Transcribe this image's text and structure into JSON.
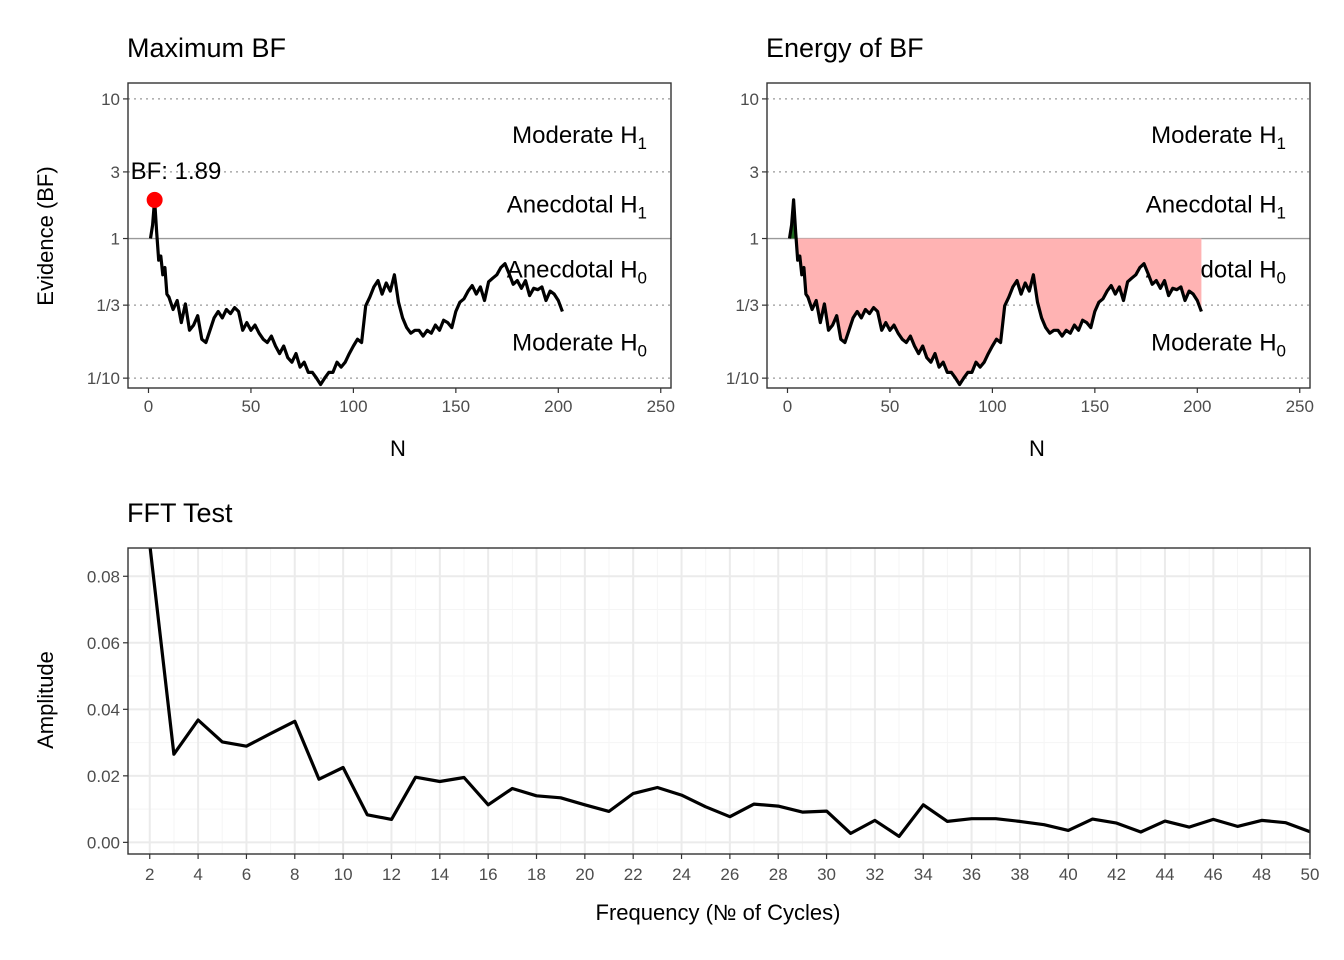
{
  "panels": {
    "max_bf": {
      "title": "Maximum BF",
      "annotation": "BF: 1.89"
    },
    "energy_bf": {
      "title": "Energy of BF"
    },
    "fft": {
      "title": "FFT Test"
    }
  },
  "bf_axis": {
    "ylabel": "Evidence (BF)",
    "xlabel": "N",
    "y_ticks": [
      {
        "value": 10,
        "label": "10"
      },
      {
        "value": 3,
        "label": "3"
      },
      {
        "value": 1,
        "label": "1"
      },
      {
        "value": 0.3333,
        "label": "1/3"
      },
      {
        "value": 0.1,
        "label": "1/10"
      }
    ],
    "x_ticks": [
      0,
      50,
      100,
      150,
      200,
      250
    ],
    "zones": [
      {
        "label": "Moderate H",
        "sub": "1",
        "level": 5.5
      },
      {
        "label": "Anecdotal H",
        "sub": "1",
        "level": 1.75
      },
      {
        "label": "Anecdotal H",
        "sub": "0",
        "level": 0.6
      },
      {
        "label": "Moderate H",
        "sub": "0",
        "level": 0.18
      }
    ]
  },
  "fft_axis": {
    "ylabel": "Amplitude",
    "xlabel": "Frequency (№ of Cycles)",
    "y_ticks": [
      "0.00",
      "0.02",
      "0.04",
      "0.06",
      "0.08"
    ],
    "x_ticks": [
      2,
      4,
      6,
      8,
      10,
      12,
      14,
      16,
      18,
      20,
      22,
      24,
      26,
      28,
      30,
      32,
      34,
      36,
      38,
      40,
      42,
      44,
      46,
      48,
      50
    ]
  },
  "colors": {
    "line": "#000000",
    "max_point": "#ff0000",
    "energy_fill_h0": "#ffb3b3",
    "energy_fill_h1": "#1f6b1f",
    "reference_line": "#999999",
    "dotted_guides": "#999999",
    "panel_border": "#333333",
    "grid_major": "#ebebeb",
    "grid_minor": "#f5f5f5"
  },
  "chart_data": [
    {
      "type": "line",
      "title": "Maximum BF",
      "xlabel": "N",
      "ylabel": "Evidence (BF)",
      "y_scale": "log",
      "xlim": [
        -10,
        255
      ],
      "ylim": [
        0.085,
        13
      ],
      "max_point": {
        "x": 3,
        "y": 1.89,
        "label": "BF: 1.89"
      },
      "reference_line_y": 1,
      "dotted_lines_y": [
        10,
        3,
        0.3333,
        0.1
      ],
      "series": [
        {
          "x": [
            1,
            2,
            3,
            4,
            5,
            6,
            7,
            8,
            9,
            10,
            12,
            14,
            16,
            18,
            20,
            22,
            24,
            26,
            28,
            30,
            32,
            34,
            36,
            38,
            40,
            42,
            44,
            46,
            48,
            50,
            52,
            54,
            56,
            58,
            60,
            62,
            64,
            66,
            68,
            70,
            72,
            74,
            76,
            78,
            80,
            82,
            84,
            86,
            88,
            90,
            92,
            94,
            96,
            98,
            100,
            102,
            104,
            106,
            108,
            110,
            112,
            114,
            116,
            118,
            120,
            122,
            124,
            126,
            128,
            130,
            132,
            134,
            136,
            138,
            140,
            142,
            144,
            146,
            148,
            150,
            152,
            154,
            156,
            158,
            160,
            162,
            164,
            166,
            168,
            170,
            172,
            174,
            176,
            178,
            180,
            182,
            184,
            186,
            188,
            190,
            192,
            194,
            196,
            198,
            200,
            202
          ],
          "y": [
            1.0,
            1.25,
            1.89,
            1.1,
            0.7,
            0.75,
            0.55,
            0.62,
            0.4,
            0.38,
            0.31,
            0.36,
            0.25,
            0.34,
            0.22,
            0.24,
            0.28,
            0.19,
            0.18,
            0.22,
            0.27,
            0.3,
            0.27,
            0.31,
            0.29,
            0.32,
            0.3,
            0.22,
            0.25,
            0.22,
            0.24,
            0.21,
            0.19,
            0.18,
            0.2,
            0.17,
            0.15,
            0.17,
            0.14,
            0.13,
            0.15,
            0.12,
            0.13,
            0.11,
            0.11,
            0.1,
            0.09,
            0.1,
            0.11,
            0.11,
            0.13,
            0.12,
            0.13,
            0.15,
            0.17,
            0.19,
            0.18,
            0.33,
            0.38,
            0.45,
            0.5,
            0.4,
            0.48,
            0.42,
            0.55,
            0.35,
            0.27,
            0.23,
            0.21,
            0.22,
            0.22,
            0.2,
            0.22,
            0.21,
            0.24,
            0.22,
            0.26,
            0.25,
            0.23,
            0.3,
            0.35,
            0.37,
            0.42,
            0.46,
            0.4,
            0.45,
            0.36,
            0.49,
            0.52,
            0.55,
            0.62,
            0.66,
            0.56,
            0.47,
            0.5,
            0.44,
            0.5,
            0.39,
            0.44,
            0.43,
            0.45,
            0.36,
            0.42,
            0.4,
            0.36,
            0.3
          ]
        }
      ]
    },
    {
      "type": "area",
      "title": "Energy of BF",
      "xlabel": "N",
      "ylabel": "",
      "y_scale": "log",
      "xlim": [
        -10,
        255
      ],
      "ylim": [
        0.085,
        13
      ],
      "fill_between": "BF curve and BF = 1",
      "note": "same BF series as Maximum BF; red area below 1, green area above 1"
    },
    {
      "type": "line",
      "title": "FFT Test",
      "xlabel": "Frequency (№ of Cycles)",
      "ylabel": "Amplitude",
      "xlim": [
        1.1,
        50
      ],
      "ylim": [
        -0.0035,
        0.0885
      ],
      "series": [
        {
          "x": [
            2,
            3,
            4,
            5,
            6,
            7,
            8,
            9,
            10,
            11,
            12,
            13,
            14,
            15,
            16,
            17,
            18,
            19,
            20,
            21,
            22,
            23,
            24,
            25,
            26,
            27,
            28,
            29,
            30,
            31,
            32,
            33,
            34,
            35,
            36,
            37,
            38,
            39,
            40,
            41,
            42,
            43,
            44,
            45,
            46,
            47,
            48,
            49,
            50
          ],
          "y": [
            0.0895,
            0.0265,
            0.0368,
            0.0302,
            0.0289,
            0.0327,
            0.0364,
            0.019,
            0.0225,
            0.0083,
            0.0069,
            0.0196,
            0.0183,
            0.0195,
            0.0113,
            0.0162,
            0.014,
            0.0134,
            0.0113,
            0.0093,
            0.0147,
            0.0165,
            0.0142,
            0.0107,
            0.0077,
            0.0115,
            0.0109,
            0.0091,
            0.0094,
            0.0027,
            0.0066,
            0.0018,
            0.0113,
            0.0063,
            0.0071,
            0.0071,
            0.0063,
            0.0053,
            0.0036,
            0.007,
            0.0058,
            0.0031,
            0.0064,
            0.0046,
            0.0069,
            0.0048,
            0.0066,
            0.0059,
            0.0032
          ]
        }
      ]
    }
  ]
}
